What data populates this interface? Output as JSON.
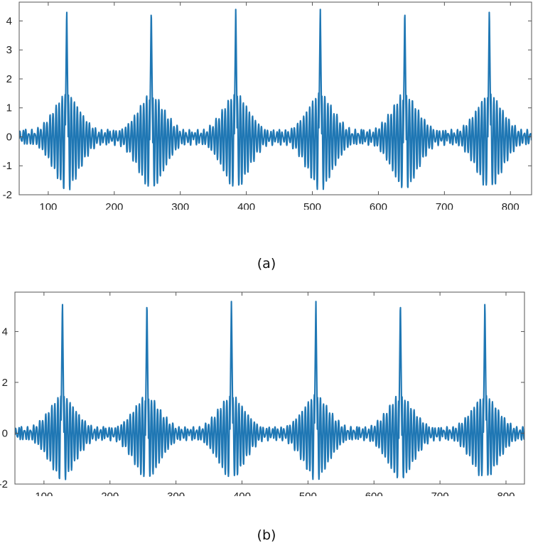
{
  "captions": {
    "a": "(a)",
    "b": "(b)"
  },
  "colors": {
    "series": "#1f77b4",
    "axes": "#555555",
    "text": "#222222"
  },
  "chart_data": [
    {
      "type": "line",
      "panel": "(a)",
      "title": "",
      "xlabel": "",
      "ylabel": "",
      "xlim": [
        56,
        832
      ],
      "ylim": [
        -2,
        4.65
      ],
      "xticks": [
        100,
        200,
        300,
        400,
        500,
        600,
        700,
        800
      ],
      "yticks": [
        -2,
        -1,
        0,
        1,
        2,
        3,
        4
      ],
      "grid": false,
      "series": [
        {
          "peaks_x": [
            128,
            256,
            384,
            512,
            640,
            768
          ],
          "peak_y": 4.5,
          "min_y": -1.75,
          "envelope_max_y": 1.5,
          "period": 128,
          "oscillation_period": 4.6
        }
      ]
    },
    {
      "type": "line",
      "panel": "(b)",
      "title": "",
      "xlabel": "",
      "ylabel": "",
      "xlim": [
        56,
        828
      ],
      "ylim": [
        -2,
        5.55
      ],
      "xticks": [
        100,
        200,
        300,
        400,
        500,
        600,
        700,
        800
      ],
      "yticks": [
        -2,
        0,
        2,
        4
      ],
      "grid": false,
      "series": [
        {
          "peaks_x": [
            128,
            256,
            384,
            512,
            640,
            768
          ],
          "peak_y": 5.3,
          "min_y": -1.75,
          "envelope_max_y": 1.5,
          "period": 128,
          "oscillation_period": 4.6
        }
      ]
    }
  ]
}
